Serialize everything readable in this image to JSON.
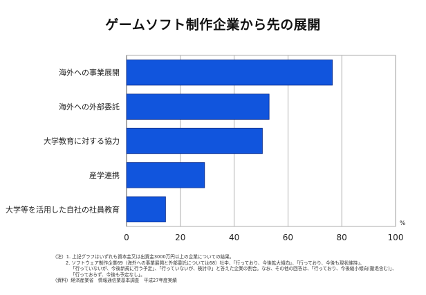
{
  "title": "ゲームソフト制作企業から先の展開",
  "chart_data": {
    "type": "bar",
    "orientation": "horizontal",
    "title": "ゲームソフト制作企業から先の展開",
    "categories": [
      "海外への事業展開",
      "海外への外部委託",
      "大学教育に対する協力",
      "産学連携",
      "大学等を活用した自社の社員教育"
    ],
    "values": [
      76.5,
      53,
      50.5,
      29,
      14.5
    ],
    "xlim": [
      0,
      100
    ],
    "xticks": [
      "0",
      "20",
      "40",
      "60",
      "80",
      "100"
    ],
    "unit_label": "%",
    "bar_color": "#1155dd",
    "grid": true,
    "legend": "none"
  },
  "notes": [
    "（注）1. 上記グラフはいずれも資本金又は出資金3000万円以上の企業についての結果。",
    "2. ソフトウェア制作企業69（海外への事業展開と外部委託については68）社中、「行っており、今後拡大傾向」、「行っており、今後も現状維持」、",
    "「行っていないが、今後新規に行う予定」、「行っていないが、検討中」と答えた企業の割合。なお、その他の回答は、「行っており、今後縮小傾向(撤退含む)」、",
    "「行っておらず、今後も予定なし」。",
    "（資料）経済産業省　情報通信業基本調査　平成27年度実績"
  ]
}
